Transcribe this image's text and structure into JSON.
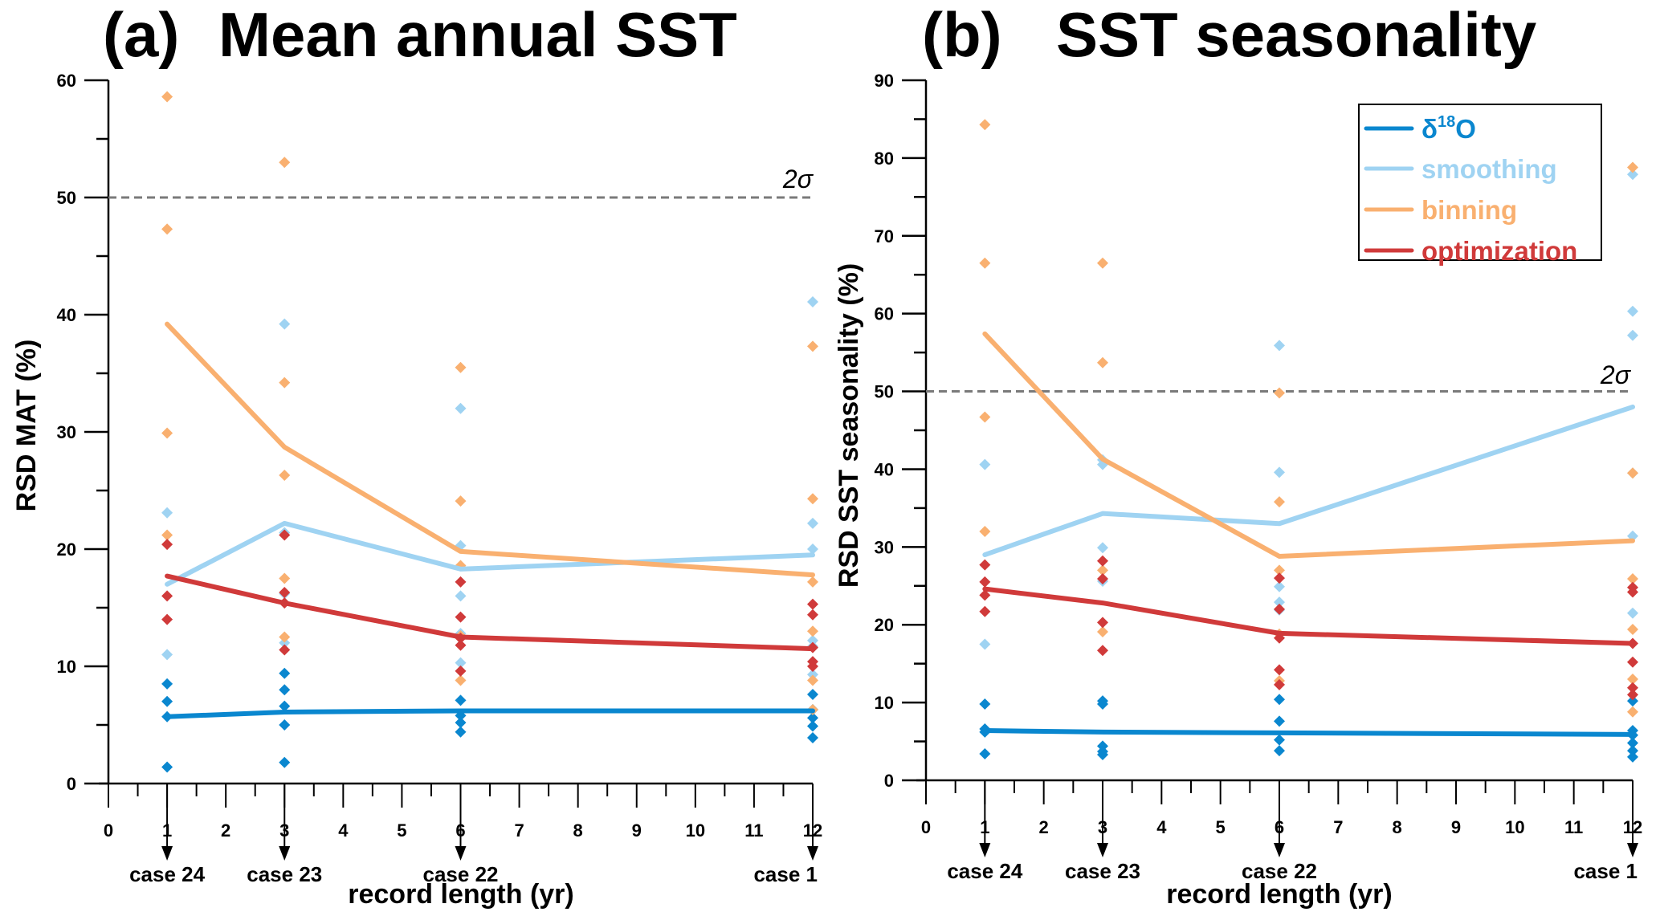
{
  "chart_data": [
    {
      "type": "line",
      "panel_label": "(a)",
      "title": "Mean annual SST",
      "xlabel": "record length (yr)",
      "ylabel": "RSD MAT (%)",
      "xlim": [
        0,
        12
      ],
      "ylim": [
        0,
        60
      ],
      "xticks": [
        0,
        1,
        2,
        3,
        4,
        5,
        6,
        7,
        8,
        9,
        10,
        11,
        12
      ],
      "yticks": [
        0,
        10,
        20,
        30,
        40,
        50,
        60
      ],
      "grid": false,
      "threshold": {
        "value": 50,
        "label": "2σ"
      },
      "cases": [
        {
          "x": 1,
          "label": "case 24"
        },
        {
          "x": 3,
          "label": "case 23"
        },
        {
          "x": 6,
          "label": "case 22"
        },
        {
          "x": 12,
          "label": "case 1"
        }
      ],
      "x": [
        1,
        3,
        6,
        12
      ],
      "series": [
        {
          "name": "δ18O",
          "key": "d18o",
          "color": "#0a87cf",
          "values": [
            5.7,
            6.1,
            6.2,
            6.2
          ],
          "points": [
            [
              1,
              8.5
            ],
            [
              1,
              7.0
            ],
            [
              1,
              5.7
            ],
            [
              1,
              1.4
            ],
            [
              3,
              9.4
            ],
            [
              3,
              8.0
            ],
            [
              3,
              6.6
            ],
            [
              3,
              5.0
            ],
            [
              3,
              1.8
            ],
            [
              6,
              7.1
            ],
            [
              6,
              5.8
            ],
            [
              6,
              5.2
            ],
            [
              6,
              4.4
            ],
            [
              12,
              7.6
            ],
            [
              12,
              6.3
            ],
            [
              12,
              5.6
            ],
            [
              12,
              4.9
            ],
            [
              12,
              3.9
            ]
          ]
        },
        {
          "name": "smoothing",
          "key": "smoothing",
          "color": "#9fd3f2",
          "values": [
            17.0,
            22.2,
            18.3,
            19.5
          ],
          "points": [
            [
              1,
              23.1
            ],
            [
              1,
              11.0
            ],
            [
              3,
              39.2
            ],
            [
              3,
              21.4
            ],
            [
              3,
              16.2
            ],
            [
              3,
              12.0
            ],
            [
              6,
              32.0
            ],
            [
              6,
              20.3
            ],
            [
              6,
              16.0
            ],
            [
              6,
              12.8
            ],
            [
              6,
              10.3
            ],
            [
              12,
              41.1
            ],
            [
              12,
              22.2
            ],
            [
              12,
              20.0
            ],
            [
              12,
              12.2
            ],
            [
              12,
              11.7
            ],
            [
              12,
              9.3
            ]
          ]
        },
        {
          "name": "binning",
          "key": "binning",
          "color": "#f9b070",
          "values": [
            39.2,
            28.7,
            19.8,
            17.8
          ],
          "points": [
            [
              1,
              58.6
            ],
            [
              1,
              47.3
            ],
            [
              1,
              29.9
            ],
            [
              1,
              21.2
            ],
            [
              3,
              53.0
            ],
            [
              3,
              34.2
            ],
            [
              3,
              26.3
            ],
            [
              3,
              17.5
            ],
            [
              3,
              12.5
            ],
            [
              6,
              35.5
            ],
            [
              6,
              24.1
            ],
            [
              6,
              18.6
            ],
            [
              6,
              12.6
            ],
            [
              6,
              8.8
            ],
            [
              12,
              37.3
            ],
            [
              12,
              24.3
            ],
            [
              12,
              17.2
            ],
            [
              12,
              13.0
            ],
            [
              12,
              8.8
            ],
            [
              12,
              6.3
            ]
          ]
        },
        {
          "name": "optimization",
          "key": "optimization",
          "color": "#d03a3a",
          "values": [
            17.7,
            15.4,
            12.5,
            11.5
          ],
          "points": [
            [
              1,
              20.4
            ],
            [
              1,
              16.0
            ],
            [
              1,
              14.0
            ],
            [
              3,
              21.2
            ],
            [
              3,
              16.3
            ],
            [
              3,
              15.4
            ],
            [
              3,
              11.4
            ],
            [
              6,
              17.2
            ],
            [
              6,
              14.2
            ],
            [
              6,
              12.4
            ],
            [
              6,
              11.8
            ],
            [
              6,
              9.6
            ],
            [
              12,
              15.3
            ],
            [
              12,
              14.4
            ],
            [
              12,
              11.6
            ],
            [
              12,
              10.4
            ],
            [
              12,
              10.0
            ]
          ]
        }
      ]
    },
    {
      "type": "line",
      "panel_label": "(b)",
      "title": "SST seasonality",
      "xlabel": "record length (yr)",
      "ylabel": "RSD SST seasonality (%)",
      "xlim": [
        0,
        12
      ],
      "ylim": [
        0,
        90
      ],
      "xticks": [
        0,
        1,
        2,
        3,
        4,
        5,
        6,
        7,
        8,
        9,
        10,
        11,
        12
      ],
      "yticks": [
        0,
        10,
        20,
        30,
        40,
        50,
        60,
        70,
        80,
        90
      ],
      "grid": false,
      "threshold": {
        "value": 50,
        "label": "2σ"
      },
      "legend_position": "top-right",
      "cases": [
        {
          "x": 1,
          "label": "case 24"
        },
        {
          "x": 3,
          "label": "case 23"
        },
        {
          "x": 6,
          "label": "case 22"
        },
        {
          "x": 12,
          "label": "case 1"
        }
      ],
      "x": [
        1,
        3,
        6,
        12
      ],
      "series": [
        {
          "name": "δ18O",
          "key": "d18o",
          "color": "#0a87cf",
          "values": [
            6.4,
            6.2,
            6.1,
            5.9
          ],
          "points": [
            [
              1,
              9.8
            ],
            [
              1,
              6.6
            ],
            [
              1,
              6.2
            ],
            [
              1,
              3.4
            ],
            [
              3,
              10.2
            ],
            [
              3,
              9.8
            ],
            [
              3,
              4.4
            ],
            [
              3,
              3.7
            ],
            [
              3,
              3.3
            ],
            [
              6,
              10.4
            ],
            [
              6,
              7.6
            ],
            [
              6,
              5.2
            ],
            [
              6,
              3.8
            ],
            [
              12,
              10.2
            ],
            [
              12,
              6.4
            ],
            [
              12,
              5.8
            ],
            [
              12,
              4.8
            ],
            [
              12,
              3.8
            ],
            [
              12,
              3.0
            ]
          ]
        },
        {
          "name": "smoothing",
          "key": "smoothing",
          "color": "#9fd3f2",
          "values": [
            29.0,
            34.3,
            33.0,
            48.0
          ],
          "points": [
            [
              1,
              40.6
            ],
            [
              1,
              17.5
            ],
            [
              3,
              41.2
            ],
            [
              3,
              40.6
            ],
            [
              3,
              29.9
            ],
            [
              3,
              25.6
            ],
            [
              6,
              55.9
            ],
            [
              6,
              39.6
            ],
            [
              6,
              24.9
            ],
            [
              6,
              22.9
            ],
            [
              6,
              21.9
            ],
            [
              12,
              77.9
            ],
            [
              12,
              60.3
            ],
            [
              12,
              57.2
            ],
            [
              12,
              39.5
            ],
            [
              12,
              31.4
            ],
            [
              12,
              21.5
            ]
          ]
        },
        {
          "name": "binning",
          "key": "binning",
          "color": "#f9b070",
          "values": [
            57.4,
            41.3,
            28.8,
            30.8
          ],
          "points": [
            [
              1,
              84.3
            ],
            [
              1,
              66.5
            ],
            [
              1,
              46.7
            ],
            [
              1,
              32.0
            ],
            [
              3,
              66.5
            ],
            [
              3,
              53.7
            ],
            [
              3,
              27.0
            ],
            [
              3,
              19.1
            ],
            [
              6,
              49.8
            ],
            [
              6,
              35.8
            ],
            [
              6,
              27.0
            ],
            [
              6,
              18.8
            ],
            [
              6,
              12.8
            ],
            [
              12,
              78.8
            ],
            [
              12,
              39.5
            ],
            [
              12,
              25.9
            ],
            [
              12,
              19.4
            ],
            [
              12,
              13.0
            ],
            [
              12,
              8.8
            ]
          ]
        },
        {
          "name": "optimization",
          "key": "optimization",
          "color": "#d03a3a",
          "values": [
            24.6,
            22.8,
            18.9,
            17.6
          ],
          "points": [
            [
              1,
              27.7
            ],
            [
              1,
              25.5
            ],
            [
              1,
              23.8
            ],
            [
              1,
              21.7
            ],
            [
              3,
              28.2
            ],
            [
              3,
              25.9
            ],
            [
              3,
              20.3
            ],
            [
              3,
              16.7
            ],
            [
              6,
              26.0
            ],
            [
              6,
              22.0
            ],
            [
              6,
              18.3
            ],
            [
              6,
              14.2
            ],
            [
              6,
              12.3
            ],
            [
              12,
              24.8
            ],
            [
              12,
              24.2
            ],
            [
              12,
              17.6
            ],
            [
              12,
              15.2
            ],
            [
              12,
              11.9
            ],
            [
              12,
              11.0
            ]
          ]
        }
      ]
    }
  ],
  "legend": {
    "items": [
      {
        "label": "δ",
        "sup": "18",
        "label_tail": "O",
        "color": "#0a87cf"
      },
      {
        "label": "smoothing",
        "color": "#9fd3f2"
      },
      {
        "label": "binning",
        "color": "#f9b070"
      },
      {
        "label": "optimization",
        "color": "#d03a3a"
      }
    ]
  },
  "colors": {
    "axis": "#000000",
    "threshold": "#7a7a7a"
  }
}
